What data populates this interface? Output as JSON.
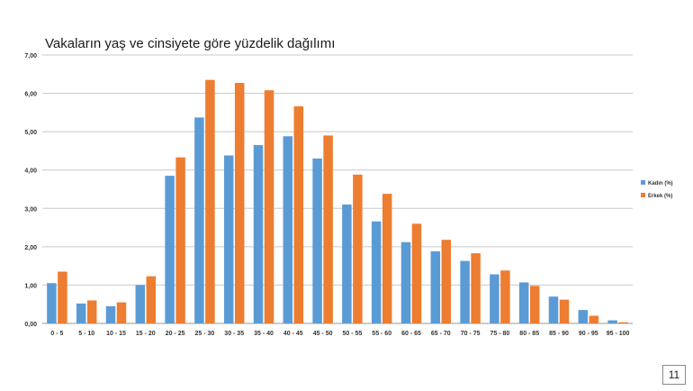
{
  "page_number": "11",
  "chart_data": {
    "type": "bar",
    "title": "Vakaların yaş ve cinsiyete göre yüzdelik dağılımı",
    "xlabel": "",
    "ylabel": "",
    "ylim": [
      0,
      7
    ],
    "yticks": [
      "0,00",
      "1,00",
      "2,00",
      "3,00",
      "4,00",
      "5,00",
      "6,00",
      "7,00"
    ],
    "grid": true,
    "legend_position": "right",
    "categories": [
      "0 - 5",
      "5 - 10",
      "10 - 15",
      "15 - 20",
      "20 - 25",
      "25 - 30",
      "30 - 35",
      "35 - 40",
      "40 - 45",
      "45 - 50",
      "50 - 55",
      "55 - 60",
      "60 - 65",
      "65 - 70",
      "70 - 75",
      "75 - 80",
      "80 - 85",
      "85 - 90",
      "90 - 95",
      "95 - 100"
    ],
    "series": [
      {
        "name": "Kadın (%)",
        "color": "#5b9bd5",
        "values": [
          1.05,
          0.52,
          0.45,
          1.0,
          3.85,
          5.37,
          4.38,
          4.65,
          4.88,
          4.3,
          3.1,
          2.66,
          2.12,
          1.88,
          1.63,
          1.28,
          1.07,
          0.7,
          0.35,
          0.08
        ]
      },
      {
        "name": "Erkek (%)",
        "color": "#ed7d31",
        "values": [
          1.35,
          0.6,
          0.55,
          1.23,
          4.33,
          6.35,
          6.27,
          6.08,
          5.66,
          4.9,
          3.88,
          3.38,
          2.6,
          2.18,
          1.83,
          1.38,
          0.98,
          0.62,
          0.2,
          0.03
        ]
      }
    ]
  }
}
